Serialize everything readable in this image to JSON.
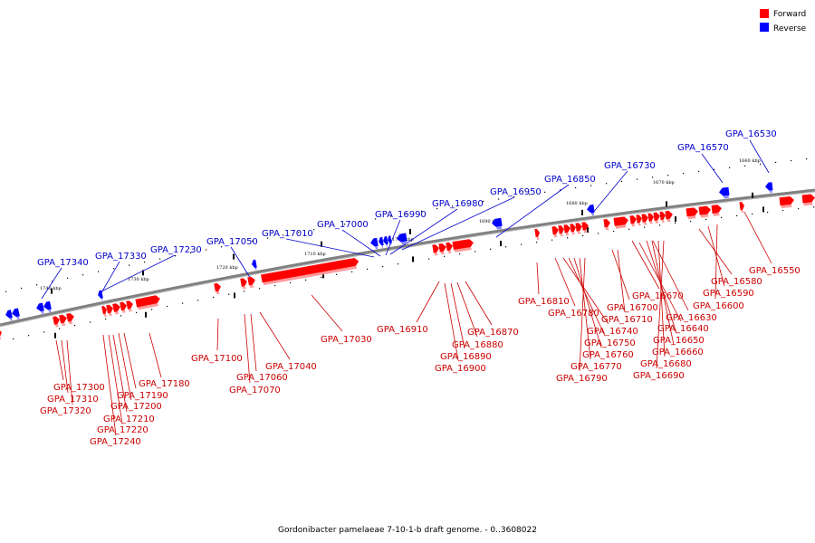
{
  "legend": {
    "items": [
      {
        "label": "Forward",
        "color": "#ff0000"
      },
      {
        "label": "Reverse",
        "color": "#0000ff"
      }
    ]
  },
  "caption": "Gordonibacter pamelaeae 7-10-1-b draft genome. - 0..3608022",
  "scale_labels": [
    "1660 kbp",
    "1670 kbp",
    "1680 kbp",
    "1690 kbp",
    "1700 kbp",
    "1710 kbp",
    "1720 kbp",
    "1730 kbp",
    "1740 kbp"
  ],
  "colors": {
    "forward": "#ff0000",
    "reverse": "#0000ff",
    "backbone": "#808080"
  },
  "genes_reverse": [
    {
      "name": "GPA_17340"
    },
    {
      "name": "GPA_17330"
    },
    {
      "name": "GPA_17230"
    },
    {
      "name": "GPA_17050"
    },
    {
      "name": "GPA_17010"
    },
    {
      "name": "GPA_17000"
    },
    {
      "name": "GPA_16990"
    },
    {
      "name": "GPA_16980"
    },
    {
      "name": "GPA_16950"
    },
    {
      "name": "GPA_16850"
    },
    {
      "name": "GPA_16730"
    },
    {
      "name": "GPA_16570"
    },
    {
      "name": "GPA_16530"
    }
  ],
  "genes_forward": [
    {
      "name": "GPA_17300"
    },
    {
      "name": "GPA_17310"
    },
    {
      "name": "GPA_17320"
    },
    {
      "name": "GPA_17180"
    },
    {
      "name": "GPA_17190"
    },
    {
      "name": "GPA_17200"
    },
    {
      "name": "GPA_17210"
    },
    {
      "name": "GPA_17220"
    },
    {
      "name": "GPA_17240"
    },
    {
      "name": "GPA_17100"
    },
    {
      "name": "GPA_17040"
    },
    {
      "name": "GPA_17060"
    },
    {
      "name": "GPA_17070"
    },
    {
      "name": "GPA_17030"
    },
    {
      "name": "GPA_16910"
    },
    {
      "name": "GPA_16870"
    },
    {
      "name": "GPA_16880"
    },
    {
      "name": "GPA_16890"
    },
    {
      "name": "GPA_16900"
    },
    {
      "name": "GPA_16810"
    },
    {
      "name": "GPA_16780"
    },
    {
      "name": "GPA_16700"
    },
    {
      "name": "GPA_16740"
    },
    {
      "name": "GPA_16710"
    },
    {
      "name": "GPA_16750"
    },
    {
      "name": "GPA_16760"
    },
    {
      "name": "GPA_16770"
    },
    {
      "name": "GPA_16790"
    },
    {
      "name": "GPA_16670"
    },
    {
      "name": "GPA_16640"
    },
    {
      "name": "GPA_16630"
    },
    {
      "name": "GPA_16650"
    },
    {
      "name": "GPA_16660"
    },
    {
      "name": "GPA_16680"
    },
    {
      "name": "GPA_16690"
    },
    {
      "name": "GPA_16580"
    },
    {
      "name": "GPA_16590"
    },
    {
      "name": "GPA_16600"
    },
    {
      "name": "GPA_16550"
    }
  ]
}
